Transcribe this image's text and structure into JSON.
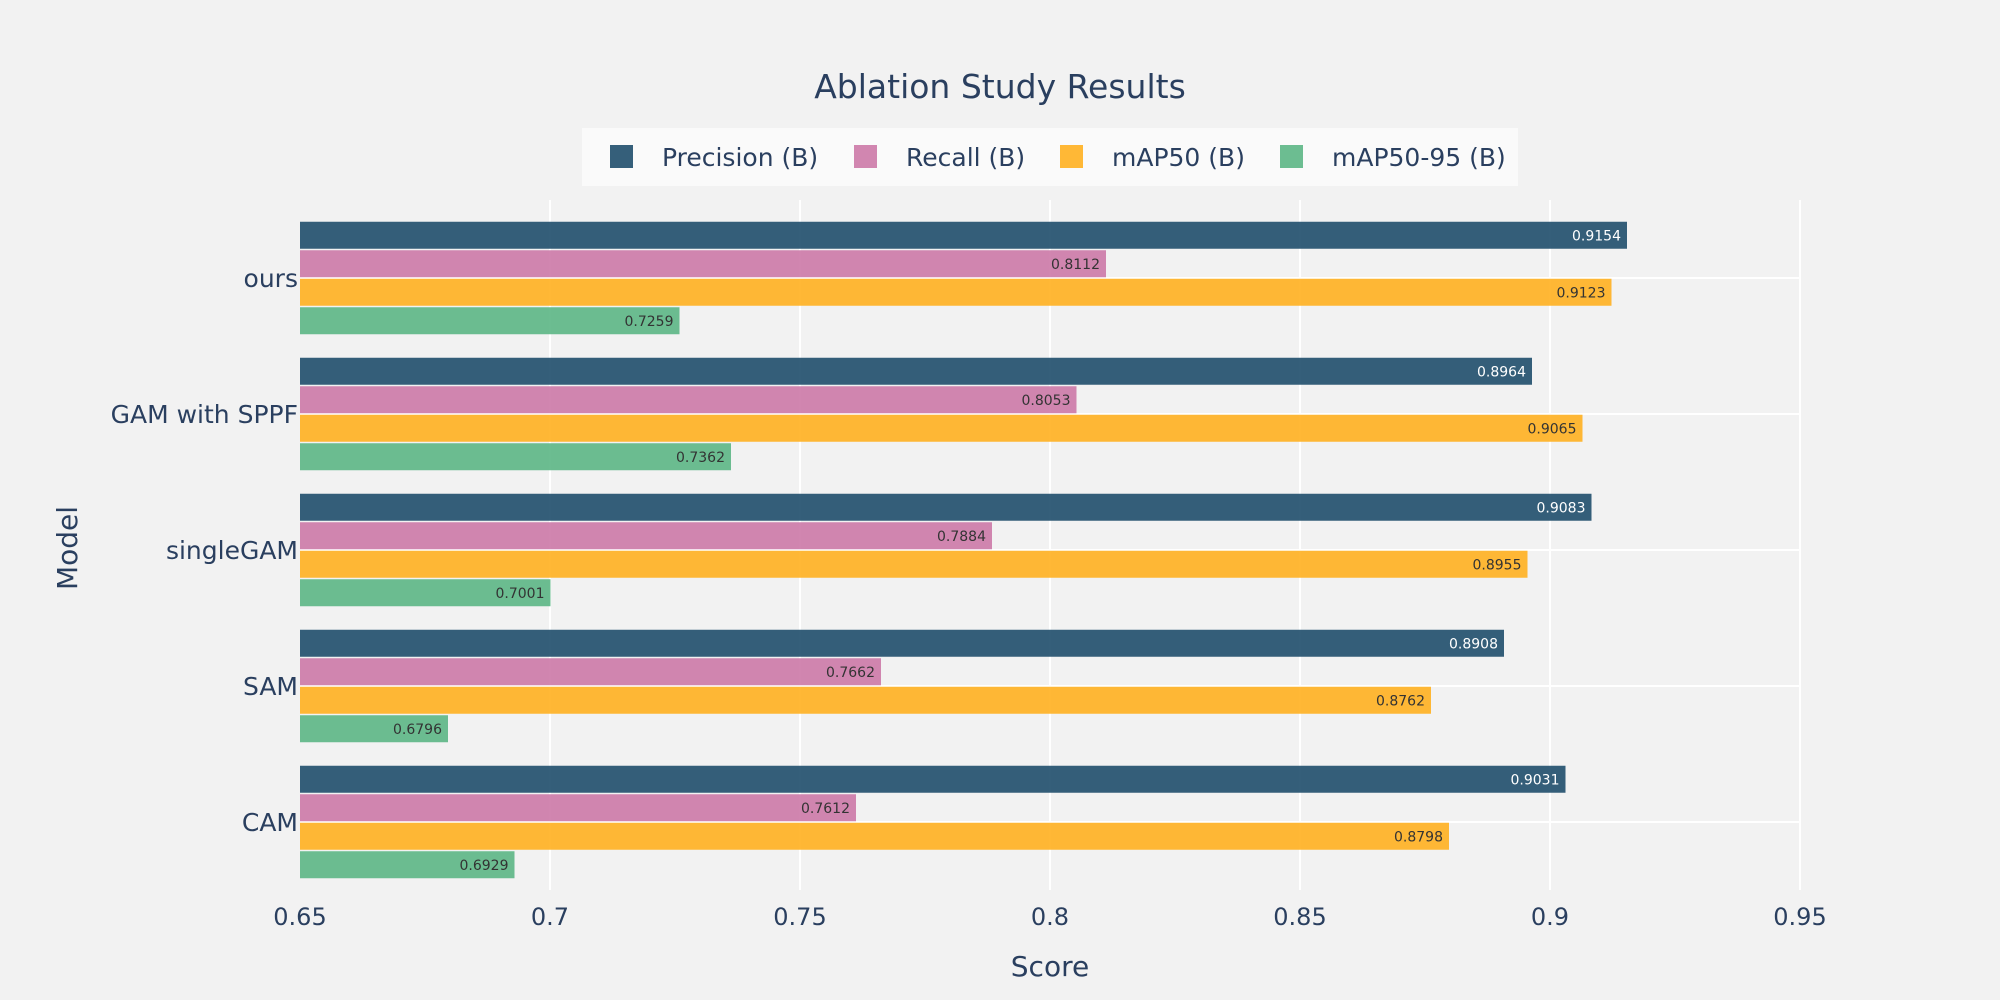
{
  "chart_data": {
    "type": "bar",
    "orientation": "horizontal",
    "title": "Ablation Study Results",
    "xlabel": "Score",
    "ylabel": "Model",
    "xlim": [
      0.65,
      0.95
    ],
    "x_ticks": [
      "0.65",
      "0.7",
      "0.75",
      "0.8",
      "0.85",
      "0.9",
      "0.95"
    ],
    "categories": [
      "ours",
      "GAM with SPPF",
      "singleGAM",
      "SAM",
      "CAM"
    ],
    "series": [
      {
        "name": "Precision (B)",
        "color": "#1f4e6b",
        "label_color": "#ffffff",
        "values": [
          0.9154,
          0.8964,
          0.9083,
          0.8908,
          0.9031
        ]
      },
      {
        "name": "Recall (B)",
        "color": "#cc79a7",
        "label_color": "#333333",
        "values": [
          0.8112,
          0.8053,
          0.7884,
          0.7662,
          0.7612
        ]
      },
      {
        "name": "mAP50 (B)",
        "color": "#ffb020",
        "label_color": "#333333",
        "values": [
          0.9123,
          0.9065,
          0.8955,
          0.8762,
          0.8798
        ]
      },
      {
        "name": "mAP50-95 (B)",
        "color": "#5cb685",
        "label_color": "#333333",
        "values": [
          0.7259,
          0.7362,
          0.7001,
          0.6796,
          0.6929
        ]
      }
    ],
    "grid": true,
    "legend_position": "top-center",
    "colors": {
      "background": "#f2f2f2",
      "text": "#2a3f5f",
      "grid": "#ffffff",
      "legend_bg": "#fafafa"
    }
  }
}
